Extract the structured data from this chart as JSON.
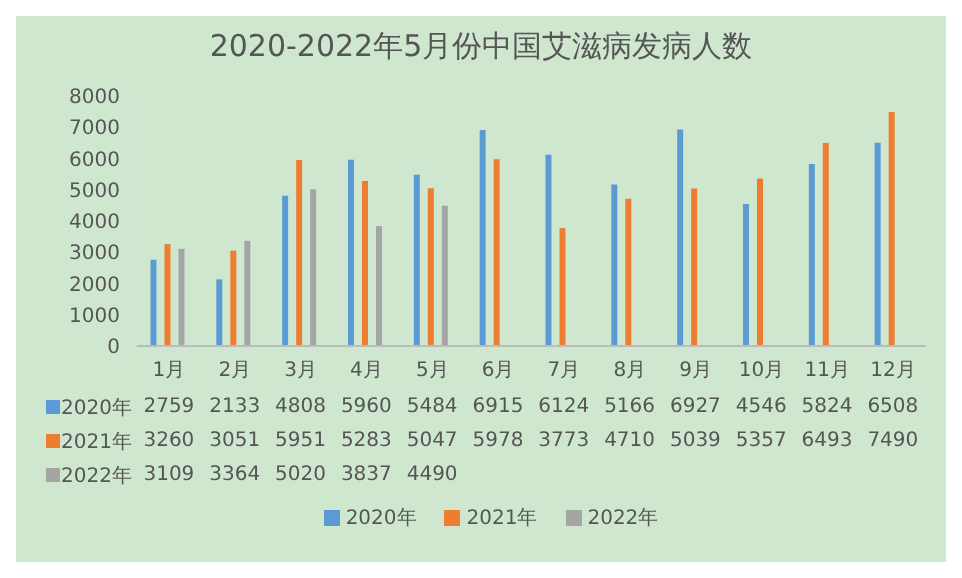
{
  "chart_data": {
    "type": "bar",
    "title": "2020-2022年5月份中国艾滋病发病人数",
    "categories": [
      "1月",
      "2月",
      "3月",
      "4月",
      "5月",
      "6月",
      "7月",
      "8月",
      "9月",
      "10月",
      "11月",
      "12月"
    ],
    "series": [
      {
        "name": "2020年",
        "color": "#5b9bd5",
        "values": [
          2759,
          2133,
          4808,
          5960,
          5484,
          6915,
          6124,
          5166,
          6927,
          4546,
          5824,
          6508
        ]
      },
      {
        "name": "2021年",
        "color": "#ed7d31",
        "values": [
          3260,
          3051,
          5951,
          5283,
          5047,
          5978,
          3773,
          4710,
          5039,
          5357,
          6493,
          7490
        ]
      },
      {
        "name": "2022年",
        "color": "#a5a5a5",
        "values": [
          3109,
          3364,
          5020,
          3837,
          4490,
          null,
          null,
          null,
          null,
          null,
          null,
          null
        ]
      }
    ],
    "ylim": [
      0,
      8000
    ],
    "yticks": [
      0,
      1000,
      2000,
      3000,
      4000,
      5000,
      6000,
      7000,
      8000
    ],
    "data_labels": true,
    "legend": "bottom"
  }
}
